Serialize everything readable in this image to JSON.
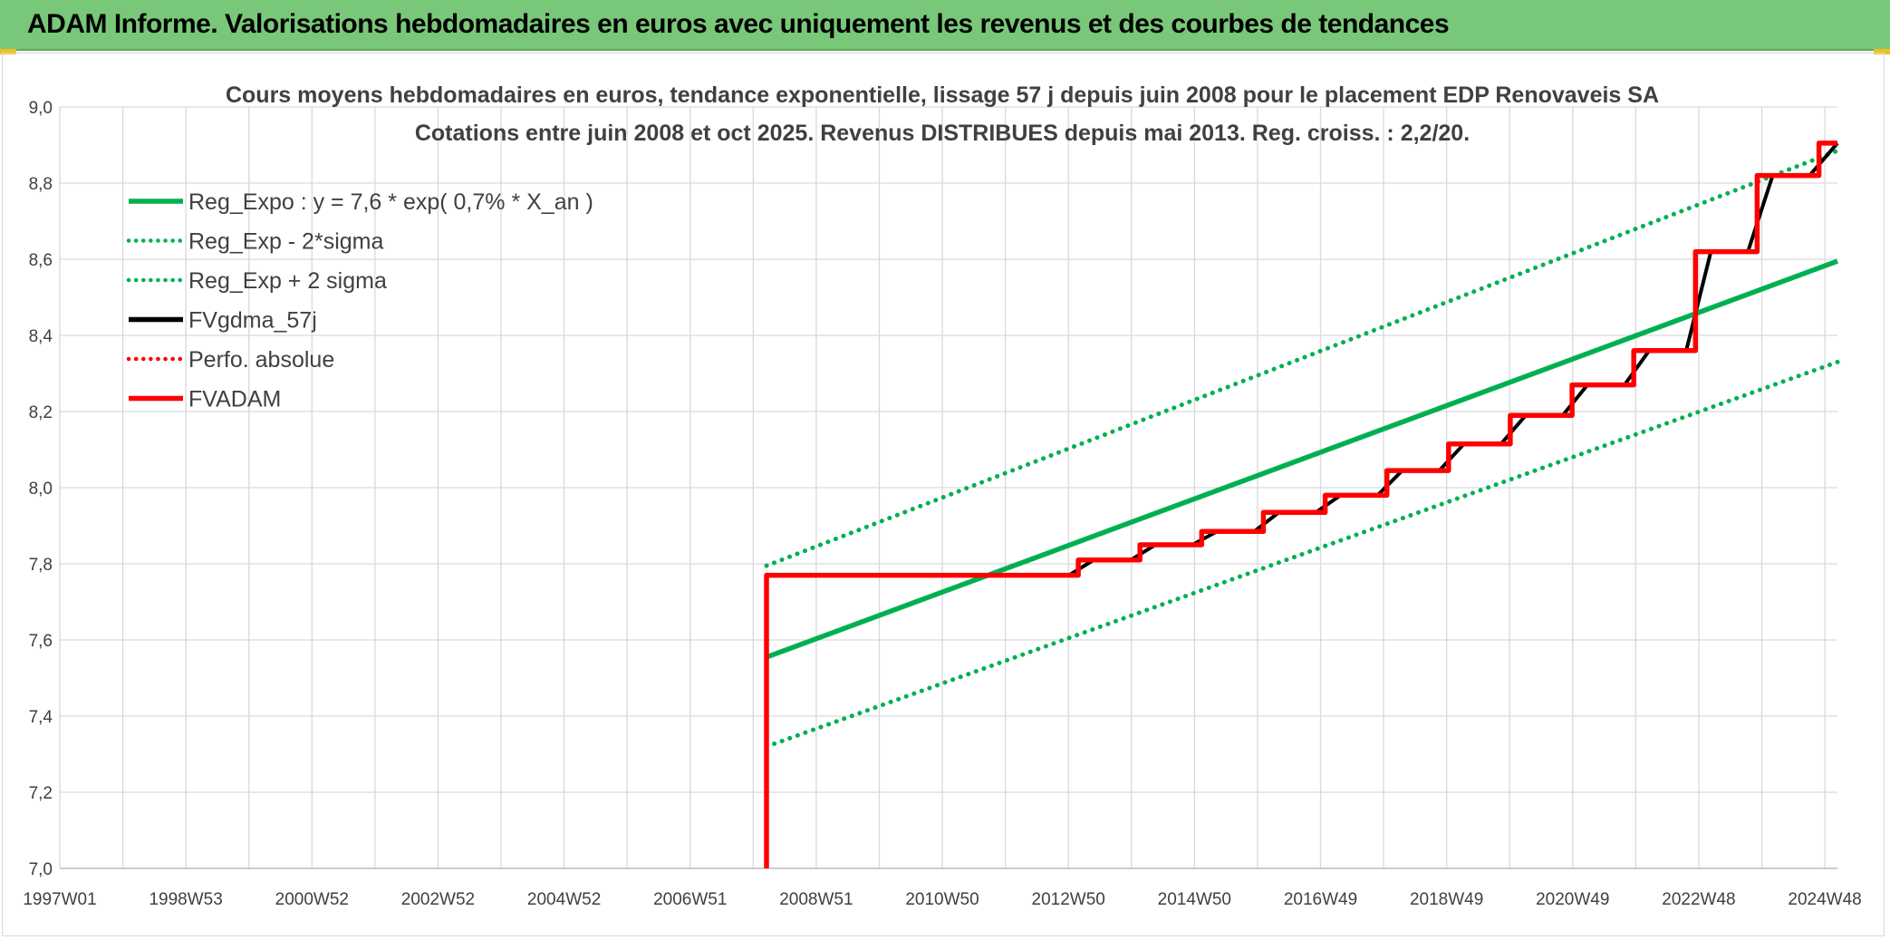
{
  "header": {
    "title": "ADAM Informe. Valorisations hebdomadaires en euros avec uniquement les revenus et des courbes de tendances"
  },
  "colors": {
    "header_bg": "#79c879",
    "green": "#00b050",
    "red": "#ff0000",
    "black": "#000000",
    "grid": "#d9d9d9",
    "text": "#404040"
  },
  "chart_data": {
    "type": "line",
    "title": "Cours moyens hebdomadaires en euros, tendance exponentielle, lissage 57 j depuis juin 2008 pour le placement EDP Renovaveis SA",
    "subtitle": "Cotations entre juin 2008 et oct 2025. Revenus DISTRIBUES depuis mai 2013. Reg. croiss. : 2,2/20.",
    "x_tick_labels": [
      "1997W01",
      "1998W53",
      "2000W52",
      "2002W52",
      "2004W52",
      "2006W51",
      "2008W51",
      "2010W50",
      "2012W50",
      "2014W50",
      "2016W49",
      "2018W49",
      "2020W49",
      "2022W48",
      "2024W48"
    ],
    "x_range": [
      1997.0,
      2025.8
    ],
    "ylim": [
      7.0,
      9.0
    ],
    "y_ticks": [
      "7,0",
      "7,2",
      "7,4",
      "7,6",
      "7,8",
      "8,0",
      "8,2",
      "8,4",
      "8,6",
      "8,8",
      "9,0"
    ],
    "grid": true,
    "legend_position": "top-left",
    "series": [
      {
        "name": "Reg_Expo : y = 7,6 * exp( 0,7% *  X_an )",
        "color": "#00b050",
        "style": "solid",
        "x": [
          2008.45,
          2025.8
        ],
        "y": [
          7.555,
          8.595
        ]
      },
      {
        "name": "Reg_Exp - 2*sigma",
        "color": "#00b050",
        "style": "dotted",
        "x": [
          2008.45,
          2025.8
        ],
        "y": [
          7.32,
          8.33
        ]
      },
      {
        "name": "Reg_Exp + 2 sigma",
        "color": "#00b050",
        "style": "dotted",
        "x": [
          2008.45,
          2025.8
        ],
        "y": [
          7.795,
          8.885
        ]
      },
      {
        "name": "FVgdma_57j",
        "color": "#000000",
        "style": "solid",
        "x": [
          2008.45,
          2013.35,
          2013.75,
          2014.35,
          2014.75,
          2015.35,
          2015.75,
          2016.35,
          2016.75,
          2017.35,
          2017.75,
          2018.35,
          2018.75,
          2019.35,
          2019.75,
          2020.35,
          2020.75,
          2021.35,
          2021.75,
          2022.35,
          2022.75,
          2023.35,
          2023.75,
          2024.35,
          2024.75,
          2025.35,
          2025.8
        ],
        "y": [
          7.77,
          7.77,
          7.81,
          7.81,
          7.85,
          7.85,
          7.885,
          7.885,
          7.935,
          7.935,
          7.98,
          7.98,
          8.045,
          8.045,
          8.115,
          8.115,
          8.19,
          8.19,
          8.27,
          8.27,
          8.36,
          8.36,
          8.62,
          8.62,
          8.82,
          8.82,
          8.905
        ]
      },
      {
        "name": "Perfo. absolue",
        "color": "#ff0000",
        "style": "dotted",
        "x": [],
        "y": []
      },
      {
        "name": "FVADAM",
        "color": "#ff0000",
        "style": "solid",
        "x": [
          2008.45,
          2008.45,
          2013.5,
          2013.5,
          2014.5,
          2014.5,
          2015.5,
          2015.5,
          2016.5,
          2016.5,
          2017.5,
          2017.5,
          2018.5,
          2018.5,
          2019.5,
          2019.5,
          2020.5,
          2020.5,
          2021.5,
          2021.5,
          2022.5,
          2022.5,
          2023.5,
          2023.5,
          2024.5,
          2024.5,
          2025.5,
          2025.5,
          2025.8
        ],
        "y": [
          7.0,
          7.77,
          7.77,
          7.81,
          7.81,
          7.85,
          7.85,
          7.885,
          7.885,
          7.935,
          7.935,
          7.98,
          7.98,
          8.045,
          8.045,
          8.115,
          8.115,
          8.19,
          8.19,
          8.27,
          8.27,
          8.36,
          8.36,
          8.62,
          8.62,
          8.82,
          8.82,
          8.905,
          8.905
        ]
      }
    ]
  }
}
